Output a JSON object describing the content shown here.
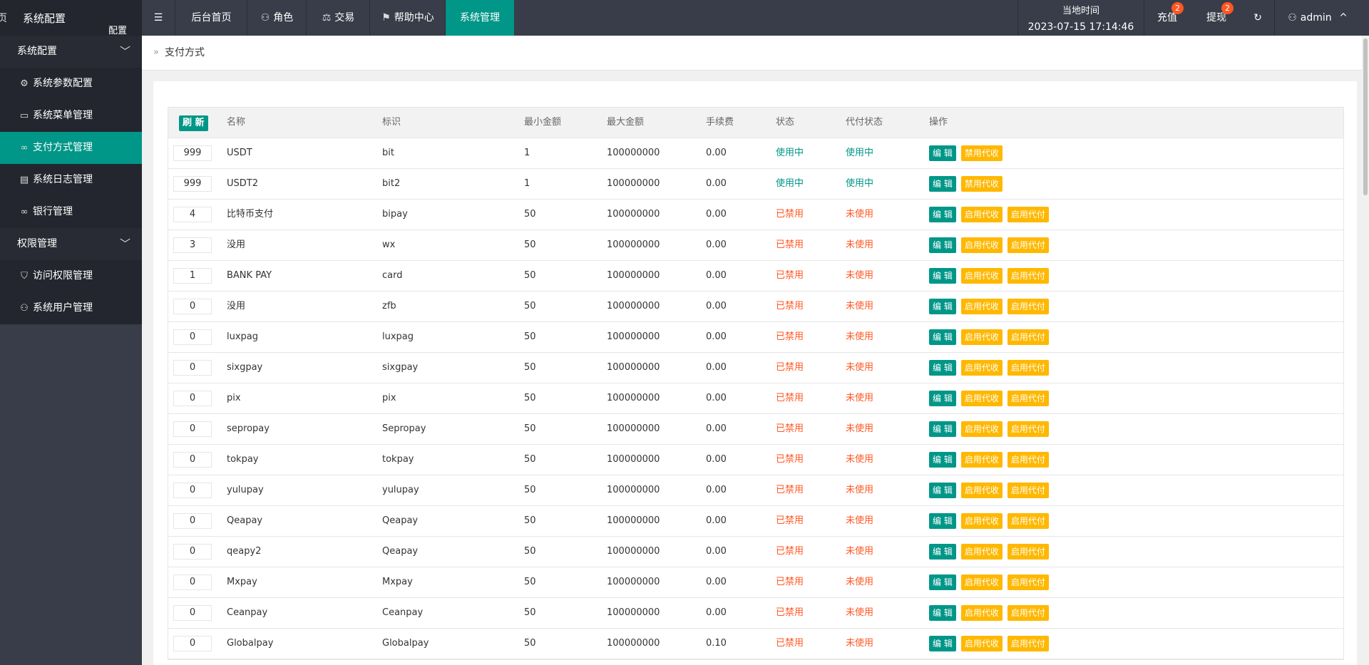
{
  "logo": {
    "left_fragment": "页",
    "title": "系统配置",
    "subtitle": "配置"
  },
  "sidebar": {
    "groups": [
      {
        "label": "系统配置",
        "items": [
          {
            "label": "系统参数配置",
            "icon": "gear-icon",
            "glyph": "⚙",
            "active": false
          },
          {
            "label": "系统菜单管理",
            "icon": "window-icon",
            "glyph": "▭",
            "active": false
          },
          {
            "label": "支付方式管理",
            "icon": "link-icon",
            "glyph": "∞",
            "active": true
          },
          {
            "label": "系统日志管理",
            "icon": "log-icon",
            "glyph": "▤",
            "active": false
          },
          {
            "label": "银行管理",
            "icon": "link-icon",
            "glyph": "∞",
            "active": false
          }
        ]
      },
      {
        "label": "权限管理",
        "items": [
          {
            "label": "访问权限管理",
            "icon": "shield-icon",
            "glyph": "⛉",
            "active": false
          },
          {
            "label": "系统用户管理",
            "icon": "user-icon",
            "glyph": "⚇",
            "active": false
          }
        ]
      }
    ]
  },
  "header": {
    "menu_toggle_glyph": "☰",
    "nav": [
      {
        "label": "后台首页",
        "icon": "",
        "active": false
      },
      {
        "label": "角色",
        "icon": "⚇",
        "active": false
      },
      {
        "label": "交易",
        "icon": "⚖",
        "active": false
      },
      {
        "label": "帮助中心",
        "icon": "⚑",
        "active": false
      },
      {
        "label": "系统管理",
        "icon": "",
        "active": true
      }
    ],
    "time_label": "当地时间",
    "time_value": "2023-07-15 17:14:46",
    "recharge_label": "充值",
    "recharge_badge": "2",
    "withdraw_label": "提现",
    "withdraw_badge": "2",
    "refresh_glyph": "↻",
    "user_label": "admin",
    "user_glyph": "⚇",
    "user_chevron": "^"
  },
  "breadcrumb": {
    "separator": "»",
    "title": "支付方式"
  },
  "table": {
    "refresh_label": "刷 新",
    "columns": [
      "名称",
      "标识",
      "最小金额",
      "最大金额",
      "手续费",
      "状态",
      "代付状态",
      "操作"
    ],
    "edit_label": "编 辑",
    "rows": [
      {
        "sort": "999",
        "name": "USDT",
        "code": "bit",
        "min": "1",
        "max": "100000000",
        "fee": "0.00",
        "status": "使用中",
        "payout_status": "使用中",
        "actions": [
          "禁用代收"
        ]
      },
      {
        "sort": "999",
        "name": "USDT2",
        "code": "bit2",
        "min": "1",
        "max": "100000000",
        "fee": "0.00",
        "status": "使用中",
        "payout_status": "使用中",
        "actions": [
          "禁用代收"
        ]
      },
      {
        "sort": "4",
        "name": "比特币支付",
        "code": "bipay",
        "min": "50",
        "max": "100000000",
        "fee": "0.00",
        "status": "已禁用",
        "payout_status": "未使用",
        "actions": [
          "启用代收",
          "启用代付"
        ]
      },
      {
        "sort": "3",
        "name": "没用",
        "code": "wx",
        "min": "50",
        "max": "100000000",
        "fee": "0.00",
        "status": "已禁用",
        "payout_status": "未使用",
        "actions": [
          "启用代收",
          "启用代付"
        ]
      },
      {
        "sort": "1",
        "name": "BANK PAY",
        "code": "card",
        "min": "50",
        "max": "100000000",
        "fee": "0.00",
        "status": "已禁用",
        "payout_status": "未使用",
        "actions": [
          "启用代收",
          "启用代付"
        ]
      },
      {
        "sort": "0",
        "name": "没用",
        "code": "zfb",
        "min": "50",
        "max": "100000000",
        "fee": "0.00",
        "status": "已禁用",
        "payout_status": "未使用",
        "actions": [
          "启用代收",
          "启用代付"
        ]
      },
      {
        "sort": "0",
        "name": "luxpag",
        "code": "luxpag",
        "min": "50",
        "max": "100000000",
        "fee": "0.00",
        "status": "已禁用",
        "payout_status": "未使用",
        "actions": [
          "启用代收",
          "启用代付"
        ]
      },
      {
        "sort": "0",
        "name": "sixgpay",
        "code": "sixgpay",
        "min": "50",
        "max": "100000000",
        "fee": "0.00",
        "status": "已禁用",
        "payout_status": "未使用",
        "actions": [
          "启用代收",
          "启用代付"
        ]
      },
      {
        "sort": "0",
        "name": "pix",
        "code": "pix",
        "min": "50",
        "max": "100000000",
        "fee": "0.00",
        "status": "已禁用",
        "payout_status": "未使用",
        "actions": [
          "启用代收",
          "启用代付"
        ]
      },
      {
        "sort": "0",
        "name": "sepropay",
        "code": "Sepropay",
        "min": "50",
        "max": "100000000",
        "fee": "0.00",
        "status": "已禁用",
        "payout_status": "未使用",
        "actions": [
          "启用代收",
          "启用代付"
        ]
      },
      {
        "sort": "0",
        "name": "tokpay",
        "code": "tokpay",
        "min": "50",
        "max": "100000000",
        "fee": "0.00",
        "status": "已禁用",
        "payout_status": "未使用",
        "actions": [
          "启用代收",
          "启用代付"
        ]
      },
      {
        "sort": "0",
        "name": "yulupay",
        "code": "yulupay",
        "min": "50",
        "max": "100000000",
        "fee": "0.00",
        "status": "已禁用",
        "payout_status": "未使用",
        "actions": [
          "启用代收",
          "启用代付"
        ]
      },
      {
        "sort": "0",
        "name": "Qeapay",
        "code": "Qeapay",
        "min": "50",
        "max": "100000000",
        "fee": "0.00",
        "status": "已禁用",
        "payout_status": "未使用",
        "actions": [
          "启用代收",
          "启用代付"
        ]
      },
      {
        "sort": "0",
        "name": "qeapy2",
        "code": "Qeapay",
        "min": "50",
        "max": "100000000",
        "fee": "0.00",
        "status": "已禁用",
        "payout_status": "未使用",
        "actions": [
          "启用代收",
          "启用代付"
        ]
      },
      {
        "sort": "0",
        "name": "Mxpay",
        "code": "Mxpay",
        "min": "50",
        "max": "100000000",
        "fee": "0.00",
        "status": "已禁用",
        "payout_status": "未使用",
        "actions": [
          "启用代收",
          "启用代付"
        ]
      },
      {
        "sort": "0",
        "name": "Ceanpay",
        "code": "Ceanpay",
        "min": "50",
        "max": "100000000",
        "fee": "0.00",
        "status": "已禁用",
        "payout_status": "未使用",
        "actions": [
          "启用代收",
          "启用代付"
        ]
      },
      {
        "sort": "0",
        "name": "Globalpay",
        "code": "Globalpay",
        "min": "50",
        "max": "100000000",
        "fee": "0.10",
        "status": "已禁用",
        "payout_status": "未使用",
        "actions": [
          "启用代收",
          "启用代付"
        ]
      }
    ]
  },
  "colors": {
    "sidebar": "#393d49",
    "accent": "#009688",
    "warn": "#ffb800",
    "danger": "#ff5722",
    "badge": "#ff5722"
  }
}
